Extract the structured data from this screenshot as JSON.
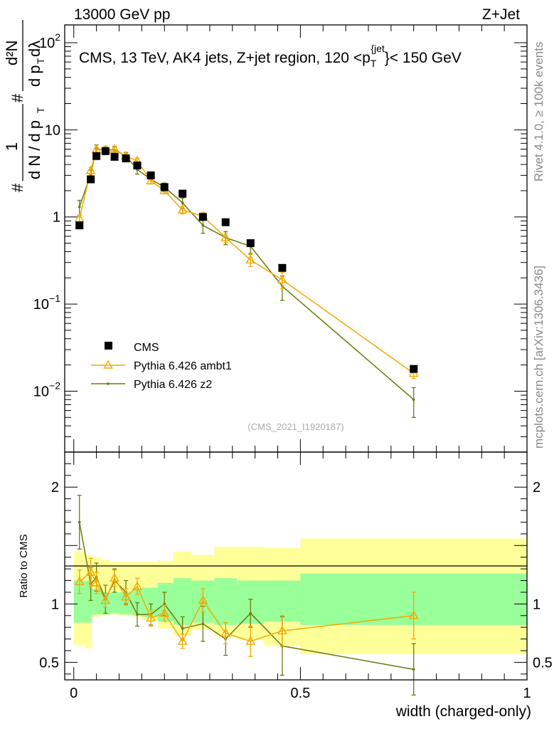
{
  "header": {
    "energy_label": "13000 GeV pp",
    "process_label": "Z+Jet"
  },
  "side_labels": {
    "rivet": "Rivet 4.1.0, ≥ 100k events",
    "mcplots": "mcplots.cern.ch [arXiv:1306.3436]"
  },
  "analysis_id": "(CMS_2021_I1920187)",
  "colors": {
    "cms": "#000000",
    "ambt1": "#f2a900",
    "z2": "#6b7a0f",
    "band_inner": "#99ff99",
    "band_outer": "#ffff99"
  },
  "chart_data": [
    {
      "type": "scatter",
      "panel": "main",
      "title": "CMS, 13 TeV, AK4 jets, Z+jet region, 120 <p_T^{jet}}< 150 GeV",
      "title_parts": {
        "main": "CMS, 13 TeV, AK4 jets, Z+jet region, 120 <p",
        "sub": "T",
        "sup": "{jet",
        "tail": "}< 150 GeV"
      },
      "ylabel": "1/N dN/dp_T d²N/dp_T dλ",
      "ylabel_parts": {
        "hash": "#",
        "one": "1",
        "dN": "d N / d p",
        "T": "T",
        "d2N": "d²N",
        "dpdl": "d p",
        "dl": " dλ"
      },
      "yscale": "log",
      "ylim": [
        0.002,
        160
      ],
      "xlim": [
        -0.02,
        1.0
      ],
      "yticks": [
        {
          "value": 0.01,
          "base": "10",
          "exp": "−2"
        },
        {
          "value": 0.1,
          "base": "10",
          "exp": "−1"
        },
        {
          "value": 1,
          "label": "1"
        },
        {
          "value": 10,
          "label": "10"
        },
        {
          "value": 100,
          "base": "10",
          "exp": "2"
        }
      ],
      "legend": {
        "position": "bottom-left",
        "entries": [
          {
            "name": "CMS",
            "marker": "square"
          },
          {
            "name": "Pythia 6.426 ambt1",
            "marker": "triangle"
          },
          {
            "name": "Pythia 6.426 z2",
            "marker": "dot"
          }
        ]
      },
      "x": [
        0.0125,
        0.0375,
        0.05,
        0.07,
        0.09,
        0.115,
        0.14,
        0.17,
        0.2,
        0.24,
        0.285,
        0.335,
        0.39,
        0.46,
        0.75
      ],
      "series": [
        {
          "name": "CMS",
          "values": [
            0.8,
            2.7,
            5.0,
            5.7,
            4.9,
            4.7,
            3.9,
            3.0,
            2.2,
            1.85,
            1.0,
            0.87,
            0.5,
            0.26,
            0.018
          ]
        },
        {
          "name": "Pythia 6.426 ambt1",
          "values": [
            0.96,
            3.4,
            5.9,
            5.9,
            6.0,
            5.0,
            4.4,
            2.6,
            2.0,
            1.2,
            1.02,
            0.58,
            0.32,
            0.19,
            0.016
          ],
          "err": [
            0.08,
            0.3,
            0.4,
            0.35,
            0.35,
            0.3,
            0.3,
            0.2,
            0.15,
            0.12,
            0.1,
            0.07,
            0.05,
            0.04,
            0.002
          ]
        },
        {
          "name": "Pythia 6.426 z2",
          "values": [
            1.3,
            3.1,
            6.1,
            5.8,
            5.9,
            5.0,
            3.5,
            2.7,
            2.2,
            1.45,
            0.8,
            0.58,
            0.46,
            0.16,
            0.008
          ],
          "err": [
            0.25,
            0.35,
            0.6,
            0.6,
            0.55,
            0.5,
            0.4,
            0.3,
            0.25,
            0.2,
            0.15,
            0.1,
            0.08,
            0.05,
            0.003
          ]
        }
      ]
    },
    {
      "type": "line",
      "panel": "ratio",
      "ylabel": "Ratio to CMS",
      "xlabel": "width (charged-only)",
      "ylim": [
        0.35,
        2.3
      ],
      "xlim": [
        -0.02,
        1.0
      ],
      "yticks": [
        0.5,
        1,
        2
      ],
      "xticks": [
        0,
        0.5,
        1
      ],
      "reference_line": 1,
      "band_bins": [
        {
          "x0": 0.0,
          "x1": 0.025,
          "inner": [
            0.84,
            1.2
          ],
          "outer": [
            0.65,
            1.45
          ]
        },
        {
          "x0": 0.025,
          "x1": 0.04,
          "inner": [
            0.84,
            1.2
          ],
          "outer": [
            0.62,
            1.42
          ]
        },
        {
          "x0": 0.04,
          "x1": 0.06,
          "inner": [
            0.91,
            1.13
          ],
          "outer": [
            0.89,
            1.4
          ]
        },
        {
          "x0": 0.06,
          "x1": 0.08,
          "inner": [
            0.91,
            1.1
          ],
          "outer": [
            0.9,
            1.38
          ]
        },
        {
          "x0": 0.08,
          "x1": 0.1,
          "inner": [
            0.92,
            1.1
          ],
          "outer": [
            0.91,
            1.36
          ]
        },
        {
          "x0": 0.1,
          "x1": 0.13,
          "inner": [
            0.91,
            1.1
          ],
          "outer": [
            0.9,
            1.36
          ]
        },
        {
          "x0": 0.13,
          "x1": 0.15,
          "inner": [
            0.9,
            1.12
          ],
          "outer": [
            0.89,
            1.36
          ]
        },
        {
          "x0": 0.15,
          "x1": 0.185,
          "inner": [
            0.89,
            1.14
          ],
          "outer": [
            0.86,
            1.36
          ]
        },
        {
          "x0": 0.185,
          "x1": 0.22,
          "inner": [
            0.85,
            1.18
          ],
          "outer": [
            0.79,
            1.37
          ]
        },
        {
          "x0": 0.22,
          "x1": 0.26,
          "inner": [
            0.82,
            1.22
          ],
          "outer": [
            0.73,
            1.45
          ]
        },
        {
          "x0": 0.26,
          "x1": 0.31,
          "inner": [
            0.84,
            1.2
          ],
          "outer": [
            0.78,
            1.42
          ]
        },
        {
          "x0": 0.31,
          "x1": 0.36,
          "inner": [
            0.82,
            1.22
          ],
          "outer": [
            0.72,
            1.49
          ]
        },
        {
          "x0": 0.36,
          "x1": 0.42,
          "inner": [
            0.83,
            1.2
          ],
          "outer": [
            0.69,
            1.49
          ]
        },
        {
          "x0": 0.42,
          "x1": 0.5,
          "inner": [
            0.85,
            1.2
          ],
          "outer": [
            0.64,
            1.48
          ]
        },
        {
          "x0": 0.5,
          "x1": 1.0,
          "inner": [
            0.82,
            1.26
          ],
          "outer": [
            0.57,
            1.56
          ]
        }
      ],
      "x": [
        0.0125,
        0.0375,
        0.05,
        0.07,
        0.09,
        0.115,
        0.14,
        0.17,
        0.2,
        0.24,
        0.285,
        0.335,
        0.39,
        0.46,
        0.75
      ],
      "series": [
        {
          "name": "Pythia 6.426 ambt1",
          "values": [
            1.19,
            1.27,
            1.18,
            1.03,
            1.22,
            1.06,
            1.15,
            0.88,
            0.92,
            0.68,
            1.03,
            0.75,
            0.68,
            0.77,
            0.9
          ],
          "err": [
            0.1,
            0.12,
            0.09,
            0.06,
            0.07,
            0.07,
            0.07,
            0.07,
            0.07,
            0.06,
            0.1,
            0.09,
            0.13,
            0.13,
            0.2
          ]
        },
        {
          "name": "Pythia 6.426 z2",
          "values": [
            1.7,
            1.17,
            1.23,
            1.04,
            1.2,
            1.1,
            0.91,
            0.91,
            1.0,
            0.79,
            0.83,
            0.7,
            0.92,
            0.64,
            0.44
          ],
          "err": [
            0.23,
            0.14,
            0.12,
            0.12,
            0.1,
            0.1,
            0.1,
            0.09,
            0.1,
            0.1,
            0.15,
            0.14,
            0.12,
            0.25,
            0.22
          ]
        }
      ]
    }
  ]
}
